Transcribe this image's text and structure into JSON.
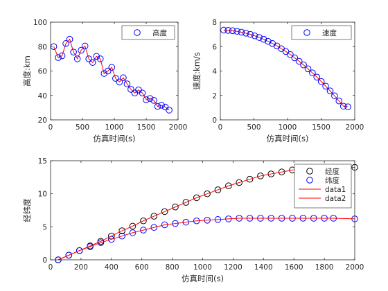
{
  "chart_data": [
    {
      "type": "line",
      "xlabel": "仿真时间(s)",
      "ylabel": "高度:km",
      "xlim": [
        0,
        2000
      ],
      "ylim": [
        20,
        100
      ],
      "xticks": [
        "0",
        "500",
        "1000",
        "1500",
        "2000"
      ],
      "yticks": [
        "20",
        "40",
        "60",
        "80",
        "100"
      ],
      "grid": false,
      "legend_position": "top-right",
      "series": [
        {
          "name": "高度",
          "marker": "circle",
          "marker_color": "#0000ff",
          "line_color": "#ff0000",
          "points": [
            [
              50,
              80
            ],
            [
              120,
              71
            ],
            [
              180,
              72.5
            ],
            [
              240,
              82.5
            ],
            [
              300,
              86
            ],
            [
              360,
              75.5
            ],
            [
              420,
              70
            ],
            [
              480,
              77
            ],
            [
              540,
              80.5
            ],
            [
              600,
              70
            ],
            [
              660,
              67
            ],
            [
              720,
              72
            ],
            [
              780,
              70
            ],
            [
              840,
              58
            ],
            [
              900,
              60
            ],
            [
              960,
              63
            ],
            [
              1020,
              54
            ],
            [
              1080,
              51
            ],
            [
              1140,
              54.5
            ],
            [
              1200,
              49.5
            ],
            [
              1260,
              45
            ],
            [
              1320,
              42
            ],
            [
              1380,
              44.5
            ],
            [
              1440,
              42
            ],
            [
              1500,
              36.5
            ],
            [
              1560,
              37.5
            ],
            [
              1620,
              36
            ],
            [
              1680,
              31
            ],
            [
              1740,
              32
            ],
            [
              1800,
              30.5
            ],
            [
              1860,
              28
            ]
          ]
        }
      ]
    },
    {
      "type": "line",
      "xlabel": "仿真时间(s)",
      "ylabel": "速度:km/s",
      "xlim": [
        0,
        2000
      ],
      "ylim": [
        0,
        8
      ],
      "xticks": [
        "0",
        "500",
        "1000",
        "1500",
        "2000"
      ],
      "yticks": [
        "0",
        "2",
        "4",
        "6",
        "8"
      ],
      "grid": false,
      "legend_position": "top-right",
      "series": [
        {
          "name": "速度",
          "marker": "circle",
          "marker_color": "#0000ff",
          "line_color": "#ff0000",
          "points": [
            [
              50,
              7.35
            ],
            [
              116,
              7.33
            ],
            [
              182,
              7.3
            ],
            [
              248,
              7.25
            ],
            [
              314,
              7.18
            ],
            [
              380,
              7.1
            ],
            [
              446,
              7.0
            ],
            [
              512,
              6.88
            ],
            [
              578,
              6.75
            ],
            [
              644,
              6.6
            ],
            [
              710,
              6.43
            ],
            [
              776,
              6.25
            ],
            [
              842,
              6.05
            ],
            [
              908,
              5.83
            ],
            [
              974,
              5.6
            ],
            [
              1040,
              5.35
            ],
            [
              1106,
              5.08
            ],
            [
              1172,
              4.8
            ],
            [
              1238,
              4.5
            ],
            [
              1304,
              4.18
            ],
            [
              1370,
              3.85
            ],
            [
              1436,
              3.5
            ],
            [
              1502,
              3.14
            ],
            [
              1568,
              2.76
            ],
            [
              1634,
              2.37
            ],
            [
              1700,
              1.97
            ],
            [
              1766,
              1.55
            ],
            [
              1832,
              1.12
            ],
            [
              1898,
              1.07
            ]
          ]
        }
      ]
    },
    {
      "type": "line",
      "xlabel": "仿真时间(s)",
      "ylabel": "经纬度",
      "xlim": [
        0,
        2000
      ],
      "ylim": [
        0,
        15
      ],
      "xticks": [
        "0",
        "200",
        "400",
        "600",
        "800",
        "1000",
        "1200",
        "1400",
        "1600",
        "1800",
        "2000"
      ],
      "yticks": [
        "0",
        "5",
        "10",
        "15"
      ],
      "grid": false,
      "legend_position": "top-right",
      "series": [
        {
          "name": "经度",
          "marker": "circle",
          "marker_color": "#000000",
          "points": [
            [
              50,
              0
            ],
            [
              120,
              0.7
            ],
            [
              190,
              1.4
            ],
            [
              260,
              2.1
            ],
            [
              330,
              2.8
            ],
            [
              400,
              3.6
            ],
            [
              470,
              4.4
            ],
            [
              540,
              5.1
            ],
            [
              610,
              5.9
            ],
            [
              680,
              6.6
            ],
            [
              750,
              7.3
            ],
            [
              820,
              8.0
            ],
            [
              890,
              8.7
            ],
            [
              960,
              9.4
            ],
            [
              1030,
              10.0
            ],
            [
              1100,
              10.6
            ],
            [
              1170,
              11.2
            ],
            [
              1240,
              11.7
            ],
            [
              1310,
              12.2
            ],
            [
              1380,
              12.7
            ],
            [
              1450,
              13.0
            ],
            [
              1520,
              13.3
            ],
            [
              1590,
              13.6
            ],
            [
              1660,
              13.8
            ],
            [
              1730,
              13.9
            ],
            [
              1800,
              14.0
            ],
            [
              1860,
              14.0
            ],
            [
              2000,
              14.0
            ]
          ]
        },
        {
          "name": "纬度",
          "marker": "circle",
          "marker_color": "#0000ff",
          "points": [
            [
              50,
              0
            ],
            [
              120,
              0.7
            ],
            [
              190,
              1.4
            ],
            [
              260,
              2.0
            ],
            [
              330,
              2.6
            ],
            [
              400,
              3.1
            ],
            [
              470,
              3.6
            ],
            [
              540,
              4.1
            ],
            [
              610,
              4.5
            ],
            [
              680,
              4.9
            ],
            [
              750,
              5.3
            ],
            [
              820,
              5.5
            ],
            [
              890,
              5.7
            ],
            [
              960,
              5.9
            ],
            [
              1030,
              6.0
            ],
            [
              1100,
              6.1
            ],
            [
              1170,
              6.2
            ],
            [
              1240,
              6.3
            ],
            [
              1310,
              6.3
            ],
            [
              1380,
              6.3
            ],
            [
              1450,
              6.3
            ],
            [
              1520,
              6.3
            ],
            [
              1590,
              6.3
            ],
            [
              1660,
              6.3
            ],
            [
              1730,
              6.3
            ],
            [
              1800,
              6.3
            ],
            [
              1860,
              6.3
            ],
            [
              2000,
              6.2
            ]
          ]
        },
        {
          "name": "data1",
          "marker": "none",
          "line_color": "#ff0000",
          "points": [
            [
              50,
              0
            ],
            [
              120,
              0.7
            ],
            [
              190,
              1.4
            ],
            [
              260,
              2.1
            ],
            [
              330,
              2.8
            ],
            [
              400,
              3.6
            ],
            [
              470,
              4.4
            ],
            [
              540,
              5.1
            ],
            [
              610,
              5.9
            ],
            [
              680,
              6.6
            ],
            [
              750,
              7.3
            ],
            [
              820,
              8.0
            ],
            [
              890,
              8.7
            ],
            [
              960,
              9.4
            ],
            [
              1030,
              10.0
            ],
            [
              1100,
              10.6
            ],
            [
              1170,
              11.2
            ],
            [
              1240,
              11.7
            ],
            [
              1310,
              12.2
            ],
            [
              1380,
              12.7
            ],
            [
              1450,
              13.0
            ],
            [
              1520,
              13.3
            ],
            [
              1590,
              13.6
            ],
            [
              1660,
              13.8
            ],
            [
              1730,
              13.9
            ],
            [
              1800,
              14.0
            ],
            [
              1860,
              14.0
            ],
            [
              2000,
              14.0
            ]
          ]
        },
        {
          "name": "data2",
          "marker": "none",
          "line_color": "#ff0000",
          "points": [
            [
              50,
              0
            ],
            [
              120,
              0.7
            ],
            [
              190,
              1.4
            ],
            [
              260,
              2.0
            ],
            [
              330,
              2.6
            ],
            [
              400,
              3.1
            ],
            [
              470,
              3.6
            ],
            [
              540,
              4.1
            ],
            [
              610,
              4.5
            ],
            [
              680,
              4.9
            ],
            [
              750,
              5.3
            ],
            [
              820,
              5.5
            ],
            [
              890,
              5.7
            ],
            [
              960,
              5.9
            ],
            [
              1030,
              6.0
            ],
            [
              1100,
              6.1
            ],
            [
              1170,
              6.2
            ],
            [
              1240,
              6.3
            ],
            [
              1310,
              6.3
            ],
            [
              1380,
              6.3
            ],
            [
              1450,
              6.3
            ],
            [
              1520,
              6.3
            ],
            [
              1590,
              6.3
            ],
            [
              1660,
              6.3
            ],
            [
              1730,
              6.3
            ],
            [
              1800,
              6.3
            ],
            [
              1860,
              6.3
            ],
            [
              2000,
              6.2
            ]
          ]
        }
      ]
    }
  ]
}
